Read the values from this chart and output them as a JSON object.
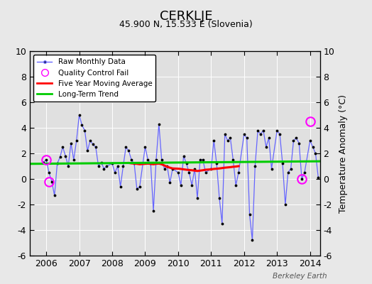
{
  "title": "CERKLJE",
  "subtitle": "45.900 N, 15.533 E (Slovenia)",
  "ylabel": "Temperature Anomaly (°C)",
  "watermark": "Berkeley Earth",
  "ylim": [
    -6,
    10
  ],
  "xlim": [
    2005.5,
    2014.3
  ],
  "bg_color": "#e8e8e8",
  "plot_bg_color": "#e0e0e0",
  "grid_color": "#ffffff",
  "raw_color": "#6666ff",
  "dot_color": "#000000",
  "ma_color": "#ff0000",
  "trend_color": "#00cc00",
  "qc_color": "#ff00ff",
  "raw_monthly": [
    2005.917,
    1.3,
    2006.0,
    1.5,
    2006.083,
    0.5,
    2006.167,
    -0.2,
    2006.25,
    -1.3,
    2006.333,
    1.2,
    2006.417,
    1.7,
    2006.5,
    2.5,
    2006.583,
    1.8,
    2006.667,
    1.0,
    2006.75,
    2.8,
    2006.833,
    1.5,
    2006.917,
    3.0,
    2007.0,
    5.0,
    2007.083,
    4.2,
    2007.167,
    3.8,
    2007.25,
    2.2,
    2007.333,
    3.0,
    2007.417,
    2.7,
    2007.5,
    2.5,
    2007.583,
    1.0,
    2007.667,
    1.3,
    2007.75,
    0.8,
    2007.833,
    1.0,
    2008.0,
    1.2,
    2008.083,
    0.5,
    2008.167,
    1.0,
    2008.25,
    -0.6,
    2008.333,
    1.0,
    2008.417,
    2.5,
    2008.5,
    2.2,
    2008.583,
    1.5,
    2008.667,
    1.2,
    2008.75,
    -0.8,
    2008.833,
    -0.6,
    2009.0,
    2.5,
    2009.083,
    1.5,
    2009.167,
    1.2,
    2009.25,
    -2.5,
    2009.333,
    1.5,
    2009.417,
    4.3,
    2009.5,
    1.5,
    2009.583,
    0.8,
    2009.667,
    1.0,
    2009.75,
    -0.3,
    2009.833,
    0.8,
    2010.0,
    0.5,
    2010.083,
    -0.5,
    2010.167,
    1.8,
    2010.25,
    1.2,
    2010.333,
    0.5,
    2010.417,
    -0.5,
    2010.5,
    0.8,
    2010.583,
    -1.5,
    2010.667,
    1.5,
    2010.75,
    1.5,
    2010.833,
    0.5,
    2011.0,
    0.8,
    2011.083,
    3.0,
    2011.167,
    1.2,
    2011.25,
    -1.5,
    2011.333,
    -3.5,
    2011.417,
    3.5,
    2011.5,
    3.0,
    2011.583,
    3.2,
    2011.667,
    1.5,
    2011.75,
    -0.5,
    2011.833,
    0.5,
    2012.0,
    3.5,
    2012.083,
    3.2,
    2012.167,
    -2.8,
    2012.25,
    -4.8,
    2012.333,
    1.0,
    2012.417,
    3.8,
    2012.5,
    3.5,
    2012.583,
    3.8,
    2012.667,
    2.5,
    2012.75,
    3.2,
    2012.833,
    0.8,
    2013.0,
    3.8,
    2013.083,
    3.5,
    2013.167,
    1.2,
    2013.25,
    -2.0,
    2013.333,
    0.5,
    2013.417,
    0.8,
    2013.5,
    3.0,
    2013.583,
    3.2,
    2013.667,
    2.8,
    2013.75,
    0.0,
    2013.833,
    0.5,
    2014.0,
    3.0,
    2014.083,
    2.5,
    2014.167,
    2.0,
    2014.25,
    0.1
  ],
  "five_year_ma": [
    2008.5,
    1.25,
    2008.583,
    1.22,
    2008.667,
    1.2,
    2008.75,
    1.18,
    2008.833,
    1.15,
    2009.0,
    1.18,
    2009.083,
    1.2,
    2009.167,
    1.18,
    2009.25,
    1.15,
    2009.333,
    1.18,
    2009.417,
    1.2,
    2009.5,
    1.15,
    2009.583,
    1.05,
    2009.667,
    0.95,
    2009.75,
    0.88,
    2009.833,
    0.82,
    2010.0,
    0.8,
    2010.083,
    0.78,
    2010.167,
    0.75,
    2010.25,
    0.72,
    2010.333,
    0.7,
    2010.417,
    0.68,
    2010.5,
    0.65,
    2010.583,
    0.62,
    2010.667,
    0.65,
    2010.75,
    0.68,
    2010.833,
    0.72,
    2011.0,
    0.75,
    2011.083,
    0.78,
    2011.167,
    0.8,
    2011.25,
    0.82,
    2011.333,
    0.85,
    2011.417,
    0.88,
    2011.5,
    0.9,
    2011.583,
    0.92,
    2011.667,
    0.95,
    2011.75,
    0.97,
    2011.833,
    1.0
  ],
  "long_term_trend": [
    2005.5,
    1.18,
    2014.3,
    1.38
  ],
  "qc_fail": [
    [
      2006.0,
      1.5
    ],
    [
      2006.083,
      -0.2
    ],
    [
      2013.75,
      0.0
    ],
    [
      2014.0,
      4.5
    ]
  ],
  "xticks": [
    2006,
    2007,
    2008,
    2009,
    2010,
    2011,
    2012,
    2013,
    2014
  ],
  "yticks": [
    -6,
    -4,
    -2,
    0,
    2,
    4,
    6,
    8,
    10
  ]
}
